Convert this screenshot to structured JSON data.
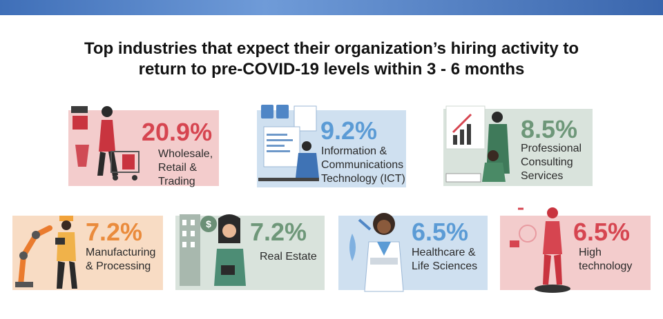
{
  "title_line1": "Top industries that expect their organization’s hiring activity to",
  "title_line2": "return to pre-COVID-19 levels within 3 - 6 months",
  "colors": {
    "pink_bg": "#f3cccc",
    "blue_bg": "#cfe0f0",
    "green_bg": "#d9e3dc",
    "orange_bg": "#f8dcc4",
    "red_text": "#d64550",
    "blue_text": "#5b9bd5",
    "green_text": "#6e9779",
    "orange_text": "#ea8b3c"
  },
  "chart_data": {
    "type": "table",
    "title": "Top industries that expect their organization’s hiring activity to return to pre-COVID-19 levels within 3 - 6 months",
    "items": [
      {
        "value_label": "20.9%",
        "value": 20.9,
        "label_lines": [
          "Wholesale,",
          "Retail &",
          "Trading"
        ],
        "icon": "shopper-cart-icon"
      },
      {
        "value_label": "9.2%",
        "value": 9.2,
        "label_lines": [
          "Information &",
          "Communications",
          "Technology (ICT)"
        ],
        "icon": "developer-computer-icon"
      },
      {
        "value_label": "8.5%",
        "value": 8.5,
        "label_lines": [
          "Professional",
          "Consulting",
          "Services"
        ],
        "icon": "consultant-chart-icon"
      },
      {
        "value_label": "7.2%",
        "value": 7.2,
        "label_lines": [
          "Manufacturing",
          "& Processing"
        ],
        "icon": "engineer-robot-arm-icon"
      },
      {
        "value_label": "7.2%",
        "value": 7.2,
        "label_lines": [
          "Real Estate"
        ],
        "icon": "real-estate-agent-icon"
      },
      {
        "value_label": "6.5%",
        "value": 6.5,
        "label_lines": [
          "Healthcare &",
          "Life Sciences"
        ],
        "icon": "doctor-icon"
      },
      {
        "value_label": "6.5%",
        "value": 6.5,
        "label_lines": [
          "High",
          "technology"
        ],
        "icon": "robot-icon"
      }
    ]
  }
}
